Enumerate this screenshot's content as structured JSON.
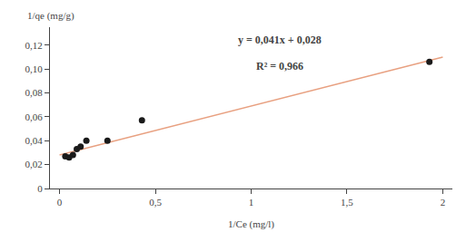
{
  "chart_data": {
    "type": "scatter",
    "xlabel": "1/Ce (mg/l)",
    "ylabel": "1/qe (mg/g)",
    "annotations": [
      "y = 0,041x + 0,028",
      "R² = 0,966"
    ],
    "series": [
      {
        "type": "line",
        "color": "#E8A080",
        "x": [
          0.0,
          2.0
        ],
        "values": [
          0.028,
          0.11
        ]
      },
      {
        "type": "scatter",
        "color": "#1a1a1a",
        "marker": "circle",
        "x": [
          0.03,
          0.05,
          0.07,
          0.09,
          0.11,
          0.14,
          0.25,
          0.43,
          1.93
        ],
        "values": [
          0.027,
          0.026,
          0.028,
          0.033,
          0.035,
          0.04,
          0.04,
          0.057,
          0.106
        ]
      }
    ],
    "xlim": [
      -0.05,
      2.05
    ],
    "ylim": [
      0,
      0.135
    ],
    "xticks": [
      0,
      {
        "value": 0.5,
        "label": "0,5"
      },
      1,
      {
        "value": 1.5,
        "label": "1,5"
      },
      2
    ],
    "yticks": [
      0,
      {
        "value": 0.02,
        "label": "0,02"
      },
      {
        "value": 0.04,
        "label": "0,04"
      },
      {
        "value": 0.06,
        "label": "0,06"
      },
      {
        "value": 0.08,
        "label": "0,08"
      },
      {
        "value": 0.1,
        "label": "0,10"
      },
      {
        "value": 0.12,
        "label": "0,12"
      }
    ],
    "grid": false
  }
}
